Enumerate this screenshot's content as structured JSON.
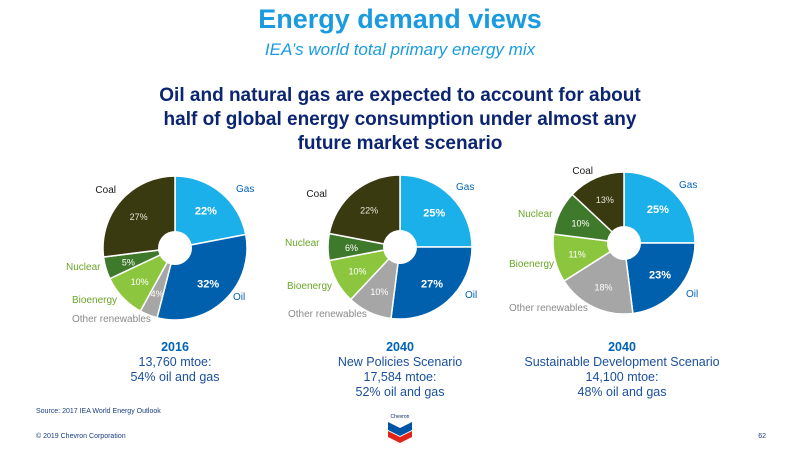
{
  "title": "Energy demand views",
  "subtitle": "IEA’s world total primary energy mix",
  "headline": "Oil and natural gas are expected to account for about half of global energy consumption under almost any future market scenario",
  "source": "Source: 2017 IEA World Energy Outlook",
  "copyright": "© 2019 Chevron Corporation",
  "page_number": "62",
  "logo": {
    "name": "Chevron",
    "icon": "chevron-logo-icon"
  },
  "colors": {
    "gas": "#1bb0ea",
    "oil": "#0060ad",
    "other_renewables": "#a6a6a6",
    "bioenergy": "#8cc63f",
    "nuclear": "#3f7a2c",
    "coal": "#3a3a10",
    "label_blue": "#0062b8",
    "label_green": "#6aa628",
    "label_dark": "#1a1a1a",
    "label_grey": "#8a8a8a"
  },
  "chart_data": [
    {
      "type": "pie",
      "title": "2016",
      "caption": [
        "13,760 mtoe:",
        "54% oil and gas"
      ],
      "categories": [
        "Gas",
        "Oil",
        "Other renewables",
        "Bioenergy",
        "Nuclear",
        "Coal"
      ],
      "values": [
        22,
        32,
        4,
        10,
        5,
        27
      ]
    },
    {
      "type": "pie",
      "title": "2040",
      "caption": [
        "New Policies Scenario",
        "17,584 mtoe:",
        "52% oil and gas"
      ],
      "categories": [
        "Gas",
        "Oil",
        "Other renewables",
        "Bioenergy",
        "Nuclear",
        "Coal"
      ],
      "values": [
        25,
        27,
        10,
        10,
        6,
        22
      ]
    },
    {
      "type": "pie",
      "title": "2040",
      "caption": [
        "Sustainable Development Scenario",
        "14,100 mtoe:",
        "48% oil and gas"
      ],
      "categories": [
        "Gas",
        "Oil",
        "Other renewables",
        "Bioenergy",
        "Nuclear",
        "Coal"
      ],
      "values": [
        25,
        23,
        18,
        11,
        10,
        13
      ]
    }
  ]
}
